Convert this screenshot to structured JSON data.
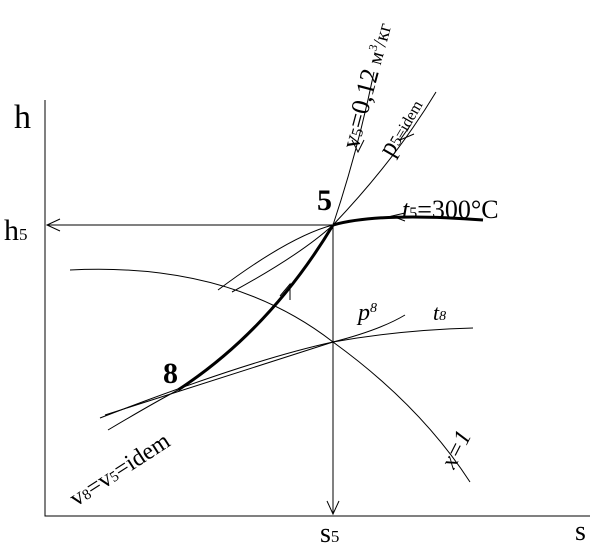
{
  "axes": {
    "y_label": "h",
    "x_label": "s"
  },
  "labels": {
    "h5": {
      "main": "h",
      "sub": "5"
    },
    "s5": {
      "main": "s",
      "sub": "5"
    },
    "point5": "5",
    "point8": "8",
    "v5": {
      "main": "v",
      "sub": "5",
      "value": "=0,12",
      "unit": "м",
      "unit_sup": "3",
      "unit_rest": "/кг"
    },
    "p5": {
      "main": "p",
      "sub": "5=idem"
    },
    "t5": {
      "main": "t",
      "sub": "5",
      "value": "=300°C"
    },
    "p8": {
      "main": "p",
      "sub": "8"
    },
    "t8": {
      "main": "t",
      "sub": "8"
    },
    "x1": "x=1",
    "v8": {
      "main": "v",
      "sub": "8",
      "mid": "=v",
      "sub2": "5",
      "rest": "=idem"
    }
  }
}
